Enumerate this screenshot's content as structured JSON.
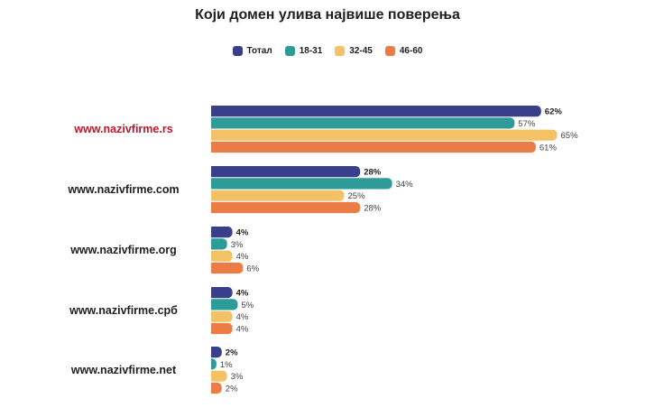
{
  "chart_data": {
    "type": "bar",
    "orientation": "horizontal",
    "title": "Који домен улива највише поверења",
    "categories": [
      "www.nazivfirme.rs",
      "www.nazivfirme.com",
      "www.nazivfirme.org",
      "www.nazivfirme.срб",
      "www.nazivfirme.net"
    ],
    "highlight_category_color": "#c0182b",
    "series": [
      {
        "name": "Тотал",
        "color": "#394089",
        "values": [
          62,
          28,
          4,
          4,
          2
        ],
        "bold_labels": true
      },
      {
        "name": "18-31",
        "color": "#2f9b98",
        "values": [
          57,
          34,
          3,
          5,
          1
        ]
      },
      {
        "name": "32-45",
        "color": "#f3c266",
        "values": [
          65,
          25,
          4,
          4,
          3
        ]
      },
      {
        "name": "46-60",
        "color": "#ec7c45",
        "values": [
          61,
          28,
          6,
          4,
          2
        ]
      }
    ],
    "value_suffix": "%",
    "xlim": [
      0,
      100
    ],
    "grid": false,
    "legend_position": "top-center"
  }
}
